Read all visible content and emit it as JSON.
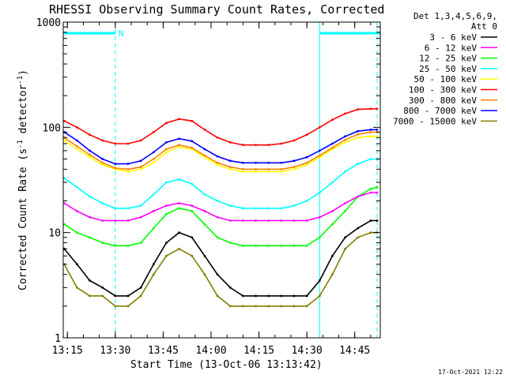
{
  "chart_data": {
    "type": "line",
    "title": "RHESSI Observing Summary Count Rates, Corrected",
    "xlabel": "Start Time (13-Oct-06 13:13:42)",
    "ylabel": "Corrected Count Rate (s⁻¹ detector⁻¹)",
    "ylabel_main": "Corrected Count Rate (s",
    "ylabel_sup1": "-1",
    "ylabel_mid": " detector",
    "ylabel_sup2": "-1",
    "ylabel_end": ")",
    "y_scale": "log",
    "ylim": [
      1,
      1000
    ],
    "xlim": [
      "13:13:42",
      "14:53:00"
    ],
    "x_ticks": [
      "13:15",
      "13:30",
      "13:45",
      "14:00",
      "14:15",
      "14:30",
      "14:45"
    ],
    "y_ticks": [
      "1",
      "10",
      "100",
      "1000"
    ],
    "legend_title": [
      "Det 1,3,4,5,6,9,",
      "Att 0"
    ],
    "legend_placement": "right",
    "night_intervals": [
      [
        "13:13:42",
        "13:30:00"
      ],
      [
        "14:34:00",
        "14:53:00"
      ]
    ],
    "night_marker_label": "N",
    "saa_dashed_lines": [
      "13:30:00",
      "14:52:00"
    ],
    "timestamp": "17-Oct-2021 12:22",
    "x": [
      "13:14",
      "13:18",
      "13:22",
      "13:26",
      "13:30",
      "13:34",
      "13:38",
      "13:42",
      "13:46",
      "13:50",
      "13:54",
      "13:58",
      "14:02",
      "14:06",
      "14:10",
      "14:14",
      "14:18",
      "14:22",
      "14:26",
      "14:30",
      "14:34",
      "14:38",
      "14:42",
      "14:46",
      "14:50",
      "14:52"
    ],
    "series": [
      {
        "name": "3 - 6 keV",
        "color": "#000000",
        "values": [
          7,
          5,
          3.5,
          3,
          2.5,
          2.5,
          3,
          5,
          8,
          10,
          9,
          6,
          4,
          3,
          2.5,
          2.5,
          2.5,
          2.5,
          2.5,
          2.5,
          3.5,
          6,
          9,
          11,
          13,
          13
        ]
      },
      {
        "name": "6 - 12 keV",
        "color": "#ff00ff",
        "values": [
          19,
          16,
          14,
          13,
          13,
          13,
          14,
          16,
          18,
          19,
          18,
          16,
          14,
          13,
          13,
          13,
          13,
          13,
          13,
          13,
          14,
          16,
          19,
          22,
          24,
          24
        ]
      },
      {
        "name": "12 - 25 keV",
        "color": "#00ff00",
        "values": [
          12,
          10,
          9,
          8,
          7.5,
          7.5,
          8,
          11,
          15,
          17,
          16,
          12,
          9,
          8,
          7.5,
          7.5,
          7.5,
          7.5,
          7.5,
          7.5,
          9,
          12,
          16,
          22,
          26,
          27
        ]
      },
      {
        "name": "25 - 50 keV",
        "color": "#00ffff",
        "values": [
          33,
          27,
          22,
          19,
          17,
          17,
          18,
          23,
          30,
          32,
          29,
          23,
          20,
          18,
          17,
          17,
          17,
          17,
          18,
          20,
          24,
          30,
          38,
          45,
          50,
          50
        ]
      },
      {
        "name": "50 - 100 keV",
        "color": "#ffff00",
        "values": [
          75,
          62,
          52,
          44,
          40,
          38,
          40,
          46,
          58,
          65,
          62,
          52,
          44,
          40,
          38,
          38,
          38,
          38,
          40,
          44,
          52,
          62,
          72,
          80,
          82,
          82
        ]
      },
      {
        "name": "100 - 300 keV",
        "color": "#ff0000",
        "values": [
          115,
          100,
          85,
          75,
          70,
          70,
          75,
          90,
          110,
          120,
          115,
          95,
          80,
          72,
          68,
          68,
          68,
          70,
          75,
          85,
          100,
          118,
          135,
          148,
          150,
          150
        ]
      },
      {
        "name": "300 - 800 keV",
        "color": "#ff8000",
        "values": [
          80,
          66,
          55,
          46,
          41,
          40,
          42,
          50,
          62,
          68,
          64,
          54,
          46,
          42,
          40,
          40,
          40,
          40,
          42,
          46,
          54,
          64,
          76,
          86,
          90,
          90
        ]
      },
      {
        "name": "800 - 7000 keV",
        "color": "#0000ff",
        "values": [
          90,
          75,
          60,
          50,
          45,
          45,
          48,
          58,
          72,
          78,
          74,
          62,
          53,
          48,
          46,
          46,
          46,
          46,
          48,
          52,
          60,
          70,
          82,
          92,
          95,
          95
        ]
      },
      {
        "name": "7000 - 15000 keV",
        "color": "#808000",
        "values": [
          5,
          3,
          2.5,
          2.5,
          2,
          2,
          2.5,
          4,
          6,
          7,
          6,
          4,
          2.5,
          2,
          2,
          2,
          2,
          2,
          2,
          2,
          2.5,
          4,
          7,
          9,
          10,
          10
        ]
      }
    ]
  }
}
